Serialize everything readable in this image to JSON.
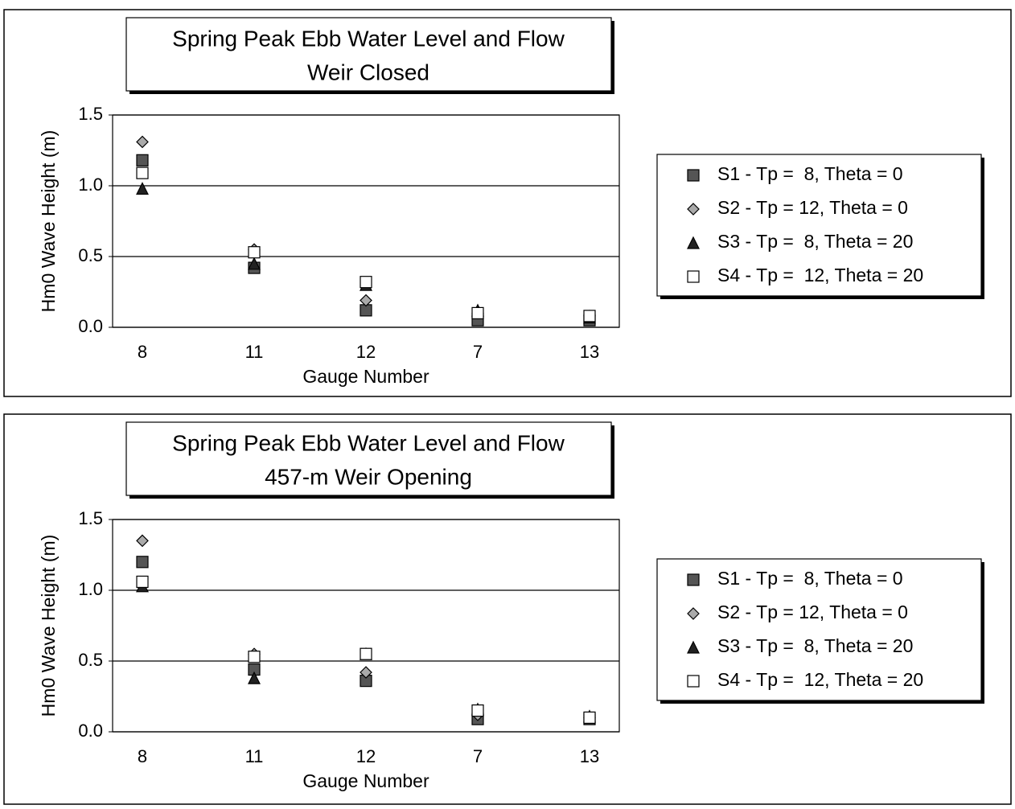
{
  "chart_data": [
    {
      "type": "scatter",
      "title": "Spring Peak Ebb Water Level and Flow",
      "subtitle": "Weir Closed",
      "x_label": "Gauge Number",
      "y_label": "Hm0 Wave Height (m)",
      "categories": [
        "8",
        "11",
        "12",
        "7",
        "13"
      ],
      "ylim": [
        0,
        1.5
      ],
      "yticks": [
        {
          "value": 0,
          "label": "0.0"
        },
        {
          "value": 0.5,
          "label": "0.5"
        },
        {
          "value": 1,
          "label": "1.0"
        },
        {
          "value": 1.5,
          "label": "1.5"
        }
      ],
      "grid": true,
      "legend": "right",
      "series": [
        {
          "name": "S1 - Tp =  8, Theta = 0",
          "color": "#555555",
          "marker": "square",
          "values": [
            1.18,
            0.42,
            0.12,
            0.05,
            0.05
          ]
        },
        {
          "name": "S2 - Tp = 12, Theta = 0",
          "color": "#aaaaaa",
          "marker": "diamond",
          "values": [
            1.31,
            0.55,
            0.19,
            0.1,
            0.08
          ]
        },
        {
          "name": "S3 - Tp =  8, Theta = 20",
          "color": "#222222",
          "marker": "triangle",
          "values": [
            0.98,
            0.45,
            0.3,
            0.12,
            0.07
          ]
        },
        {
          "name": "S4 - Tp =  12, Theta = 20",
          "color": "#ffffff",
          "marker": "square",
          "values": [
            1.09,
            0.53,
            0.32,
            0.1,
            0.08
          ]
        }
      ]
    },
    {
      "type": "scatter",
      "title": "Spring Peak Ebb Water Level and Flow",
      "subtitle": "457-m Weir Opening",
      "x_label": "Gauge Number",
      "y_label": "Hm0 Wave Height (m)",
      "categories": [
        "8",
        "11",
        "12",
        "7",
        "13"
      ],
      "ylim": [
        0,
        1.5
      ],
      "yticks": [
        {
          "value": 0,
          "label": "0.0"
        },
        {
          "value": 0.5,
          "label": "0.5"
        },
        {
          "value": 1,
          "label": "1.0"
        },
        {
          "value": 1.5,
          "label": "1.5"
        }
      ],
      "grid": true,
      "legend": "right",
      "series": [
        {
          "name": "S1 - Tp =  8, Theta = 0",
          "color": "#555555",
          "marker": "square",
          "values": [
            1.2,
            0.44,
            0.36,
            0.09,
            0.09
          ]
        },
        {
          "name": "S2 - Tp = 12, Theta = 0",
          "color": "#aaaaaa",
          "marker": "diamond",
          "values": [
            1.35,
            0.55,
            0.42,
            0.12,
            0.1
          ]
        },
        {
          "name": "S3 - Tp =  8, Theta = 20",
          "color": "#222222",
          "marker": "triangle",
          "values": [
            1.03,
            0.38,
            0.55,
            0.16,
            0.11
          ]
        },
        {
          "name": "S4 - Tp =  12, Theta = 20",
          "color": "#ffffff",
          "marker": "square",
          "values": [
            1.06,
            0.53,
            0.55,
            0.15,
            0.1
          ]
        }
      ]
    }
  ]
}
